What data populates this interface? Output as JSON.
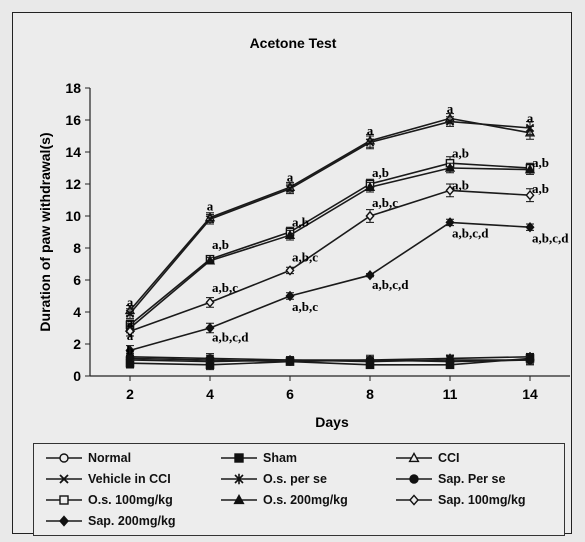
{
  "chart_data": {
    "type": "line",
    "title": "Acetone Test",
    "xlabel": "Days",
    "ylabel": "Duration of paw withdrawal(s)",
    "categories": [
      "2",
      "4",
      "6",
      "8",
      "11",
      "14"
    ],
    "ylim": [
      0,
      18
    ],
    "yticks": [
      "0",
      "2",
      "4",
      "6",
      "8",
      "10",
      "12",
      "14",
      "16",
      "18"
    ],
    "grid": false,
    "legend_position": "bottom",
    "series": [
      {
        "name": "Normal",
        "marker": "circle-open",
        "values": [
          1.1,
          1.0,
          0.9,
          1.0,
          0.9,
          1.0
        ],
        "errors": [
          0.3,
          0.3,
          0.2,
          0.3,
          0.3,
          0.3
        ]
      },
      {
        "name": "Sham",
        "marker": "square-filled",
        "values": [
          0.8,
          0.7,
          0.9,
          0.7,
          0.7,
          1.1
        ],
        "errors": [
          0.3,
          0.3,
          0.2,
          0.2,
          0.2,
          0.3
        ]
      },
      {
        "name": "CCI",
        "marker": "triangle-open",
        "values": [
          4.1,
          9.9,
          11.8,
          14.7,
          16.1,
          15.2
        ],
        "errors": [
          0.3,
          0.3,
          0.3,
          0.4,
          0.3,
          0.4
        ]
      },
      {
        "name": "Vehicle in CCI",
        "marker": "x",
        "values": [
          3.9,
          9.8,
          11.7,
          14.6,
          15.9,
          15.5
        ],
        "errors": [
          0.3,
          0.3,
          0.3,
          0.4,
          0.3,
          0.4
        ]
      },
      {
        "name": "O.s. per se",
        "marker": "star",
        "values": [
          1.0,
          0.9,
          1.0,
          1.0,
          1.1,
          1.2
        ],
        "errors": [
          0.2,
          0.2,
          0.2,
          0.2,
          0.2,
          0.2
        ]
      },
      {
        "name": "Sap. Per se",
        "marker": "circle-filled",
        "values": [
          1.2,
          1.1,
          1.0,
          0.9,
          1.0,
          1.0
        ],
        "errors": [
          0.3,
          0.3,
          0.2,
          0.2,
          0.3,
          0.3
        ]
      },
      {
        "name": "O.s. 100mg/kg",
        "marker": "square-open",
        "values": [
          3.2,
          7.3,
          9.0,
          12.0,
          13.3,
          13.0
        ],
        "errors": [
          0.3,
          0.2,
          0.3,
          0.3,
          0.4,
          0.3
        ]
      },
      {
        "name": "O.s. 200mg/kg",
        "marker": "triangle-filled",
        "values": [
          3.0,
          7.2,
          8.8,
          11.8,
          13.0,
          12.9
        ],
        "errors": [
          0.3,
          0.2,
          0.3,
          0.3,
          0.3,
          0.3
        ]
      },
      {
        "name": "Sap. 100mg/kg",
        "marker": "diamond-open",
        "values": [
          2.8,
          4.6,
          6.6,
          10.0,
          11.6,
          11.3
        ],
        "errors": [
          0.3,
          0.3,
          0.2,
          0.4,
          0.4,
          0.4
        ]
      },
      {
        "name": "Sap. 200mg/kg",
        "marker": "diamond-filled",
        "values": [
          1.6,
          3.0,
          5.0,
          6.3,
          9.6,
          9.3
        ],
        "errors": [
          0.3,
          0.3,
          0.2,
          0.1,
          0.2,
          0.2
        ]
      }
    ],
    "annotations": [
      {
        "text": "a",
        "x": "2",
        "y": 4.6
      },
      {
        "text": "a",
        "x": "2",
        "y": 3.3
      },
      {
        "text": "a",
        "x": "2",
        "y": 2.5
      },
      {
        "text": "b",
        "x": "2",
        "y": 1.6
      },
      {
        "text": "a",
        "x": "4",
        "y": 10.6
      },
      {
        "text": "a,b",
        "x": "4",
        "y": 8.2
      },
      {
        "text": "a,b,c",
        "x": "4",
        "y": 5.5
      },
      {
        "text": "a,b,c,d",
        "x": "4",
        "y": 2.4
      },
      {
        "text": "a",
        "x": "6",
        "y": 12.4
      },
      {
        "text": "a,b",
        "x": "6",
        "y": 9.6
      },
      {
        "text": "a,b,c",
        "x": "6",
        "y": 7.4
      },
      {
        "text": "a,b,c",
        "x": "6",
        "y": 4.3
      },
      {
        "text": "a",
        "x": "8",
        "y": 15.3
      },
      {
        "text": "a,b",
        "x": "8",
        "y": 12.7
      },
      {
        "text": "a,b,c",
        "x": "8",
        "y": 10.8
      },
      {
        "text": "a,b,c,d",
        "x": "8",
        "y": 5.7
      },
      {
        "text": "a",
        "x": "11",
        "y": 16.7
      },
      {
        "text": "a,b",
        "x": "11",
        "y": 13.9
      },
      {
        "text": "a,b",
        "x": "11",
        "y": 11.9
      },
      {
        "text": "a,b,c,d",
        "x": "11",
        "y": 8.9
      },
      {
        "text": "a",
        "x": "14",
        "y": 16.1
      },
      {
        "text": "a,b",
        "x": "14",
        "y": 13.3
      },
      {
        "text": "a,b",
        "x": "14",
        "y": 11.7
      },
      {
        "text": "a,b,c,d",
        "x": "14",
        "y": 8.6
      }
    ]
  }
}
